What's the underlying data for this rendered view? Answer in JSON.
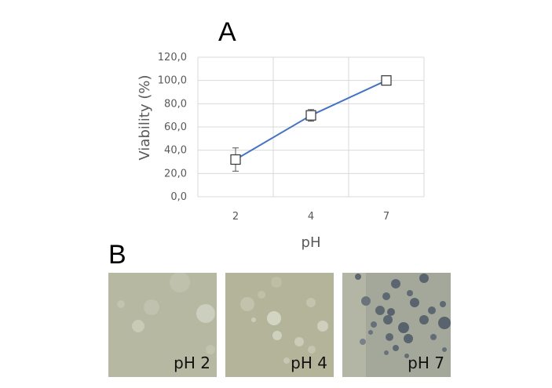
{
  "panels": {
    "a_label": "A",
    "b_label": "B"
  },
  "chart_data": {
    "type": "line",
    "categories": [
      "2",
      "4",
      "7"
    ],
    "series": [
      {
        "values": [
          32.0,
          70.0,
          100.0
        ],
        "error": [
          10.0,
          5.0,
          0.0
        ]
      }
    ],
    "xlabel": "pH",
    "ylabel": "Viability (%)",
    "ylim": [
      0,
      120
    ],
    "yticks": [
      "0,0",
      "20,0",
      "40,0",
      "60,0",
      "80,0",
      "100,0",
      "120,0"
    ],
    "grid": true,
    "marker": "open-square",
    "line_color": "#4472c4"
  },
  "photos": [
    {
      "label": "pH 2"
    },
    {
      "label": "pH 4"
    },
    {
      "label": "pH 7"
    }
  ]
}
